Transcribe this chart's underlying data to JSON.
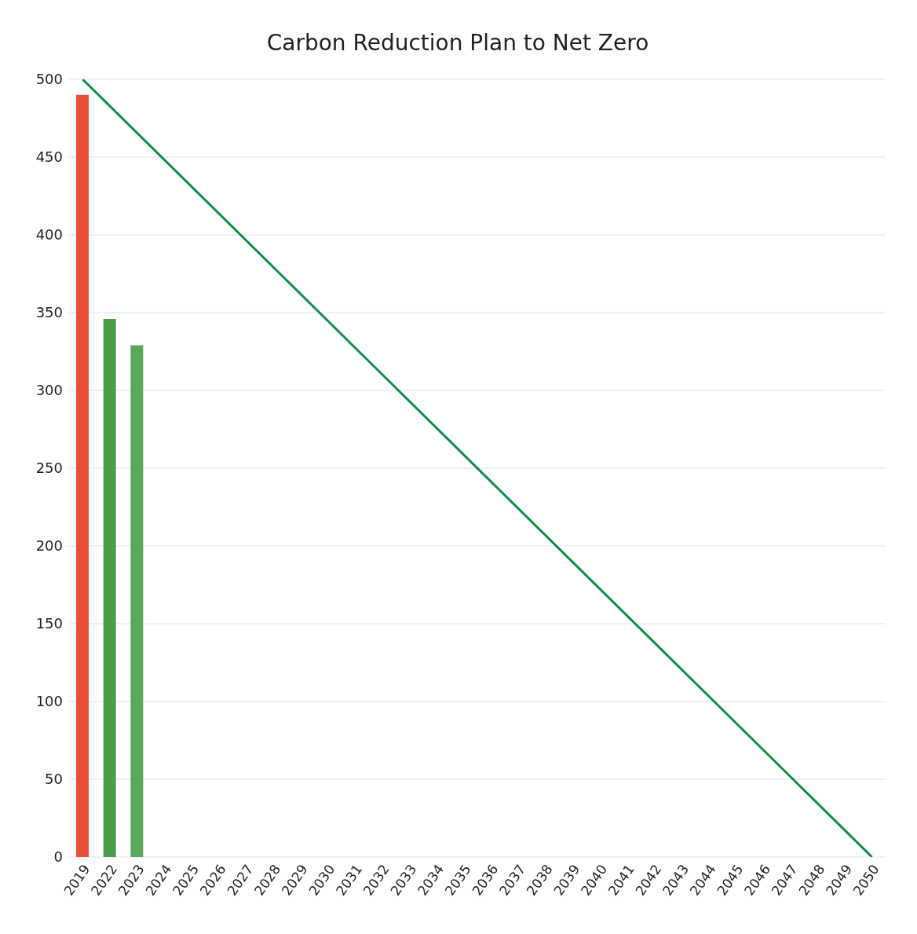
{
  "chart_data": {
    "type": "bar",
    "title": "Carbon Reduction Plan to Net Zero",
    "categories": [
      "2019",
      "2022",
      "2023",
      "2024",
      "2025",
      "2026",
      "2027",
      "2028",
      "2029",
      "2030",
      "2031",
      "2032",
      "2033",
      "2034",
      "2035",
      "2036",
      "2037",
      "2038",
      "2039",
      "2040",
      "2041",
      "2042",
      "2043",
      "2044",
      "2045",
      "2046",
      "2047",
      "2048",
      "2049",
      "2050"
    ],
    "series": [
      {
        "colors": [
          "#e8503a",
          "#4a9e4a",
          "#5aa85a",
          null,
          null,
          null,
          null,
          null,
          null,
          null,
          null,
          null,
          null,
          null,
          null,
          null,
          null,
          null,
          null,
          null,
          null,
          null,
          null,
          null,
          null,
          null,
          null,
          null,
          null,
          null
        ],
        "values": [
          490,
          346,
          329,
          null,
          null,
          null,
          null,
          null,
          null,
          null,
          null,
          null,
          null,
          null,
          null,
          null,
          null,
          null,
          null,
          null,
          null,
          null,
          null,
          null,
          null,
          null,
          null,
          null,
          null,
          null
        ]
      },
      {
        "type": "line",
        "color": "#0f8a4a",
        "values": [
          500,
          null,
          null,
          null,
          null,
          null,
          null,
          null,
          null,
          null,
          null,
          null,
          null,
          null,
          null,
          null,
          null,
          null,
          null,
          null,
          null,
          null,
          null,
          null,
          null,
          null,
          null,
          null,
          null,
          0
        ]
      }
    ],
    "ylim": [
      0,
      500
    ],
    "yticks": [
      0,
      50,
      100,
      150,
      200,
      250,
      300,
      350,
      400,
      450,
      500
    ],
    "grid": "y",
    "marker": "none"
  }
}
